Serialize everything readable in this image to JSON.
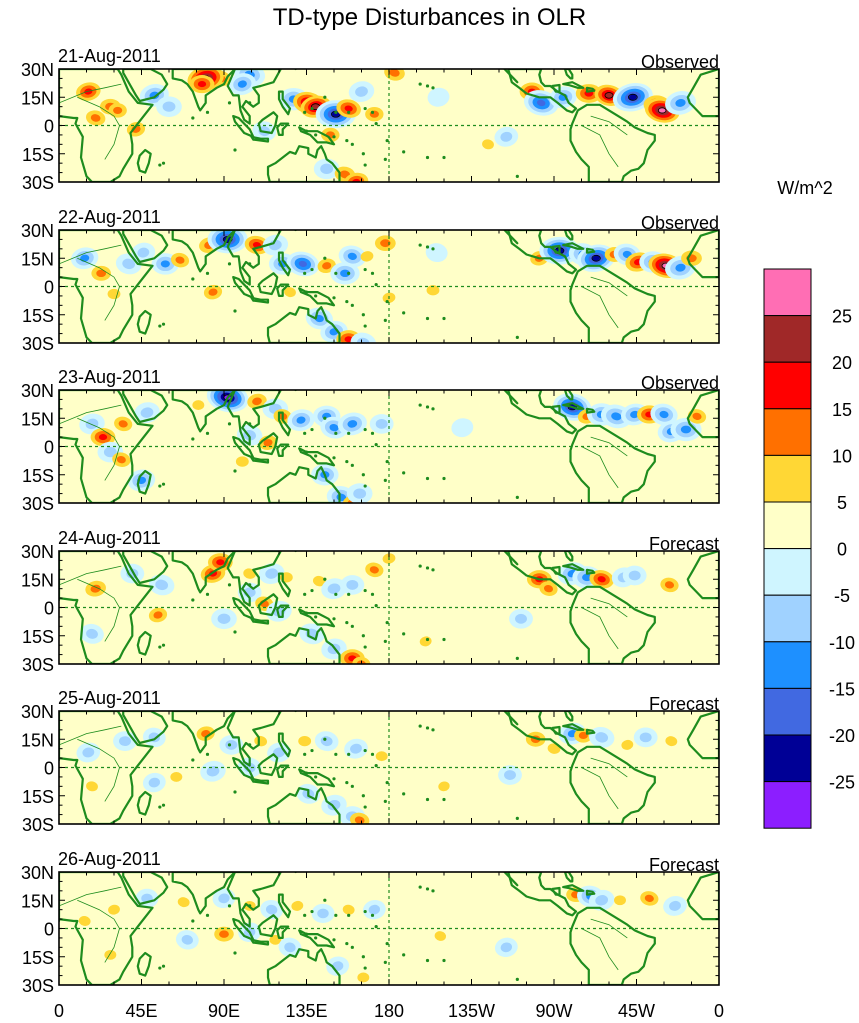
{
  "title": "TD-type Disturbances in OLR",
  "colorbar": {
    "units": "W/m^2",
    "levels": [
      -25,
      -20,
      -15,
      -10,
      -5,
      0,
      5,
      10,
      15,
      20,
      25
    ],
    "tick_labels": [
      "25",
      "20",
      "15",
      "10",
      "5",
      "0",
      "-5",
      "-10",
      "-15",
      "-20",
      "-25"
    ],
    "colors": [
      "#ff6eb4",
      "#a02828",
      "#ff0000",
      "#ff7000",
      "#ffd735",
      "#ffffc8",
      "#cff5ff",
      "#a0d2ff",
      "#1e90ff",
      "#4169e1",
      "#000096",
      "#8c1eff"
    ]
  },
  "axes": {
    "lon_labels": [
      "0",
      "45E",
      "90E",
      "135E",
      "180",
      "135W",
      "90W",
      "45W",
      "0"
    ],
    "lat_labels": [
      "30N",
      "15N",
      "0",
      "15S",
      "30S"
    ],
    "lon_range": [
      0,
      360
    ],
    "lat_range": [
      -30,
      30
    ]
  },
  "colors": {
    "land": "#1e8c1e",
    "frame": "#000000",
    "reference_lines": "#1e8c1e"
  },
  "panels": [
    {
      "date": "21-Aug-2011",
      "kind": "Observed",
      "anomalies": [
        [
          16,
          18,
          16
        ],
        [
          28,
          10,
          14
        ],
        [
          20,
          4,
          12
        ],
        [
          52,
          16,
          -12
        ],
        [
          60,
          10,
          -8
        ],
        [
          88,
          25,
          14
        ],
        [
          80,
          25,
          28
        ],
        [
          78,
          22,
          16
        ],
        [
          104,
          27,
          -14
        ],
        [
          100,
          22,
          -10
        ],
        [
          128,
          14,
          -12
        ],
        [
          136,
          12,
          22
        ],
        [
          140,
          10,
          22
        ],
        [
          151,
          6,
          -24
        ],
        [
          158,
          9,
          16
        ],
        [
          165,
          18,
          -8
        ],
        [
          172,
          6,
          10
        ],
        [
          183,
          28,
          14
        ],
        [
          207,
          15,
          -4
        ],
        [
          258,
          18,
          16
        ],
        [
          263,
          12,
          -18
        ],
        [
          275,
          15,
          -10
        ],
        [
          289,
          17,
          18
        ],
        [
          300,
          16,
          20
        ],
        [
          313,
          15,
          -24
        ],
        [
          326,
          11,
          18
        ],
        [
          329,
          8,
          26
        ],
        [
          339,
          12,
          -14
        ],
        [
          146,
          -23,
          -8
        ],
        [
          156,
          -26,
          14
        ],
        [
          162,
          -30,
          16
        ],
        [
          148,
          -5,
          10
        ],
        [
          112,
          -3,
          -6
        ],
        [
          42,
          -2,
          10
        ],
        [
          32,
          8,
          10
        ],
        [
          234,
          -10,
          6
        ],
        [
          244,
          -6,
          -6
        ]
      ]
    },
    {
      "date": "22-Aug-2011",
      "kind": "Observed",
      "anomalies": [
        [
          14,
          15,
          -10
        ],
        [
          23,
          7,
          12
        ],
        [
          38,
          12,
          -8
        ],
        [
          46,
          18,
          -6
        ],
        [
          58,
          12,
          -10
        ],
        [
          66,
          14,
          10
        ],
        [
          82,
          22,
          14
        ],
        [
          92,
          25,
          -24
        ],
        [
          108,
          22,
          16
        ],
        [
          118,
          22,
          -8
        ],
        [
          122,
          12,
          -10
        ],
        [
          133,
          12,
          -16
        ],
        [
          146,
          11,
          10
        ],
        [
          156,
          7,
          -12
        ],
        [
          160,
          16,
          -10
        ],
        [
          168,
          16,
          8
        ],
        [
          178,
          23,
          14
        ],
        [
          206,
          18,
          -4
        ],
        [
          262,
          15,
          10
        ],
        [
          273,
          19,
          -24
        ],
        [
          286,
          17,
          -12
        ],
        [
          293,
          15,
          -22
        ],
        [
          303,
          17,
          12
        ],
        [
          310,
          17,
          -10
        ],
        [
          316,
          13,
          18
        ],
        [
          324,
          13,
          -10
        ],
        [
          331,
          11,
          26
        ],
        [
          339,
          10,
          -14
        ],
        [
          345,
          15,
          14
        ],
        [
          142,
          -17,
          -10
        ],
        [
          150,
          -24,
          -10
        ],
        [
          158,
          -28,
          16
        ],
        [
          166,
          -30,
          -8
        ],
        [
          180,
          -6,
          8
        ],
        [
          204,
          -2,
          8
        ],
        [
          126,
          -3,
          6
        ],
        [
          84,
          -3,
          10
        ],
        [
          30,
          -4,
          8
        ]
      ]
    },
    {
      "date": "23-Aug-2011",
      "kind": "Observed",
      "anomalies": [
        [
          18,
          12,
          -8
        ],
        [
          24,
          5,
          16
        ],
        [
          35,
          12,
          10
        ],
        [
          48,
          18,
          -8
        ],
        [
          76,
          22,
          6
        ],
        [
          92,
          26,
          -26
        ],
        [
          108,
          24,
          12
        ],
        [
          118,
          20,
          -8
        ],
        [
          122,
          16,
          10
        ],
        [
          132,
          14,
          -10
        ],
        [
          146,
          16,
          -10
        ],
        [
          150,
          10,
          -10
        ],
        [
          160,
          12,
          -12
        ],
        [
          176,
          12,
          -6
        ],
        [
          104,
          6,
          -8
        ],
        [
          114,
          2,
          10
        ],
        [
          100,
          -8,
          8
        ],
        [
          280,
          21,
          -22
        ],
        [
          288,
          16,
          10
        ],
        [
          296,
          17,
          -12
        ],
        [
          304,
          16,
          -14
        ],
        [
          314,
          17,
          -10
        ],
        [
          322,
          17,
          16
        ],
        [
          330,
          17,
          -10
        ],
        [
          334,
          8,
          -10
        ],
        [
          342,
          9,
          -14
        ],
        [
          348,
          16,
          10
        ],
        [
          220,
          10,
          -4
        ],
        [
          28,
          -3,
          -8
        ],
        [
          34,
          -7,
          10
        ],
        [
          45,
          -18,
          -10
        ],
        [
          145,
          -15,
          -10
        ],
        [
          154,
          -27,
          -12
        ],
        [
          160,
          -30,
          12
        ],
        [
          164,
          -25,
          -8
        ]
      ]
    },
    {
      "date": "24-Aug-2011",
      "kind": "Forecast",
      "anomalies": [
        [
          20,
          10,
          14
        ],
        [
          40,
          18,
          -6
        ],
        [
          56,
          12,
          -8
        ],
        [
          84,
          18,
          16
        ],
        [
          88,
          24,
          16
        ],
        [
          104,
          18,
          8
        ],
        [
          116,
          18,
          -8
        ],
        [
          124,
          16,
          8
        ],
        [
          142,
          14,
          8
        ],
        [
          150,
          10,
          -8
        ],
        [
          160,
          12,
          -6
        ],
        [
          172,
          20,
          10
        ],
        [
          180,
          26,
          8
        ],
        [
          104,
          8,
          -6
        ],
        [
          112,
          2,
          10
        ],
        [
          120,
          -2,
          -8
        ],
        [
          262,
          15,
          16
        ],
        [
          267,
          10,
          10
        ],
        [
          280,
          18,
          -12
        ],
        [
          288,
          16,
          -12
        ],
        [
          296,
          15,
          16
        ],
        [
          308,
          16,
          -6
        ],
        [
          314,
          17,
          -6
        ],
        [
          333,
          12,
          10
        ],
        [
          54,
          -4,
          10
        ],
        [
          90,
          -6,
          -8
        ],
        [
          138,
          -14,
          -8
        ],
        [
          150,
          -22,
          -8
        ],
        [
          160,
          -27,
          16
        ],
        [
          165,
          -30,
          10
        ],
        [
          200,
          -18,
          6
        ],
        [
          252,
          -6,
          -6
        ],
        [
          18,
          -14,
          -6
        ]
      ]
    },
    {
      "date": "25-Aug-2011",
      "kind": "Forecast",
      "anomalies": [
        [
          16,
          8,
          -6
        ],
        [
          36,
          14,
          -6
        ],
        [
          52,
          16,
          -5
        ],
        [
          80,
          18,
          10
        ],
        [
          94,
          12,
          -6
        ],
        [
          110,
          14,
          8
        ],
        [
          120,
          8,
          -6
        ],
        [
          134,
          14,
          8
        ],
        [
          146,
          14,
          -6
        ],
        [
          162,
          10,
          -6
        ],
        [
          176,
          6,
          6
        ],
        [
          104,
          0,
          -6
        ],
        [
          84,
          -2,
          -8
        ],
        [
          260,
          15,
          12
        ],
        [
          270,
          10,
          8
        ],
        [
          280,
          18,
          -10
        ],
        [
          286,
          17,
          10
        ],
        [
          296,
          16,
          -8
        ],
        [
          310,
          12,
          6
        ],
        [
          320,
          16,
          -6
        ],
        [
          334,
          14,
          6
        ],
        [
          52,
          -8,
          -5
        ],
        [
          64,
          -5,
          6
        ],
        [
          136,
          -14,
          -6
        ],
        [
          150,
          -20,
          -8
        ],
        [
          160,
          -26,
          -8
        ],
        [
          164,
          -28,
          12
        ],
        [
          210,
          -10,
          5
        ],
        [
          246,
          -4,
          -6
        ],
        [
          18,
          -10,
          6
        ]
      ]
    },
    {
      "date": "26-Aug-2011",
      "kind": "Forecast",
      "anomalies": [
        [
          30,
          10,
          6
        ],
        [
          48,
          16,
          -5
        ],
        [
          68,
          14,
          6
        ],
        [
          90,
          16,
          -5
        ],
        [
          104,
          12,
          6
        ],
        [
          116,
          10,
          -5
        ],
        [
          130,
          12,
          6
        ],
        [
          144,
          8,
          -5
        ],
        [
          158,
          10,
          6
        ],
        [
          172,
          10,
          -5
        ],
        [
          90,
          -3,
          12
        ],
        [
          70,
          -6,
          -5
        ],
        [
          104,
          -2,
          -5
        ],
        [
          118,
          -6,
          6
        ],
        [
          126,
          -10,
          -5
        ],
        [
          152,
          -20,
          -5
        ],
        [
          166,
          -26,
          6
        ],
        [
          208,
          -4,
          5
        ],
        [
          244,
          -10,
          -5
        ],
        [
          282,
          18,
          12
        ],
        [
          290,
          17,
          -10
        ],
        [
          296,
          15,
          -8
        ],
        [
          306,
          15,
          6
        ],
        [
          322,
          16,
          10
        ],
        [
          336,
          12,
          -6
        ],
        [
          28,
          -14,
          6
        ],
        [
          14,
          4,
          6
        ]
      ]
    }
  ]
}
